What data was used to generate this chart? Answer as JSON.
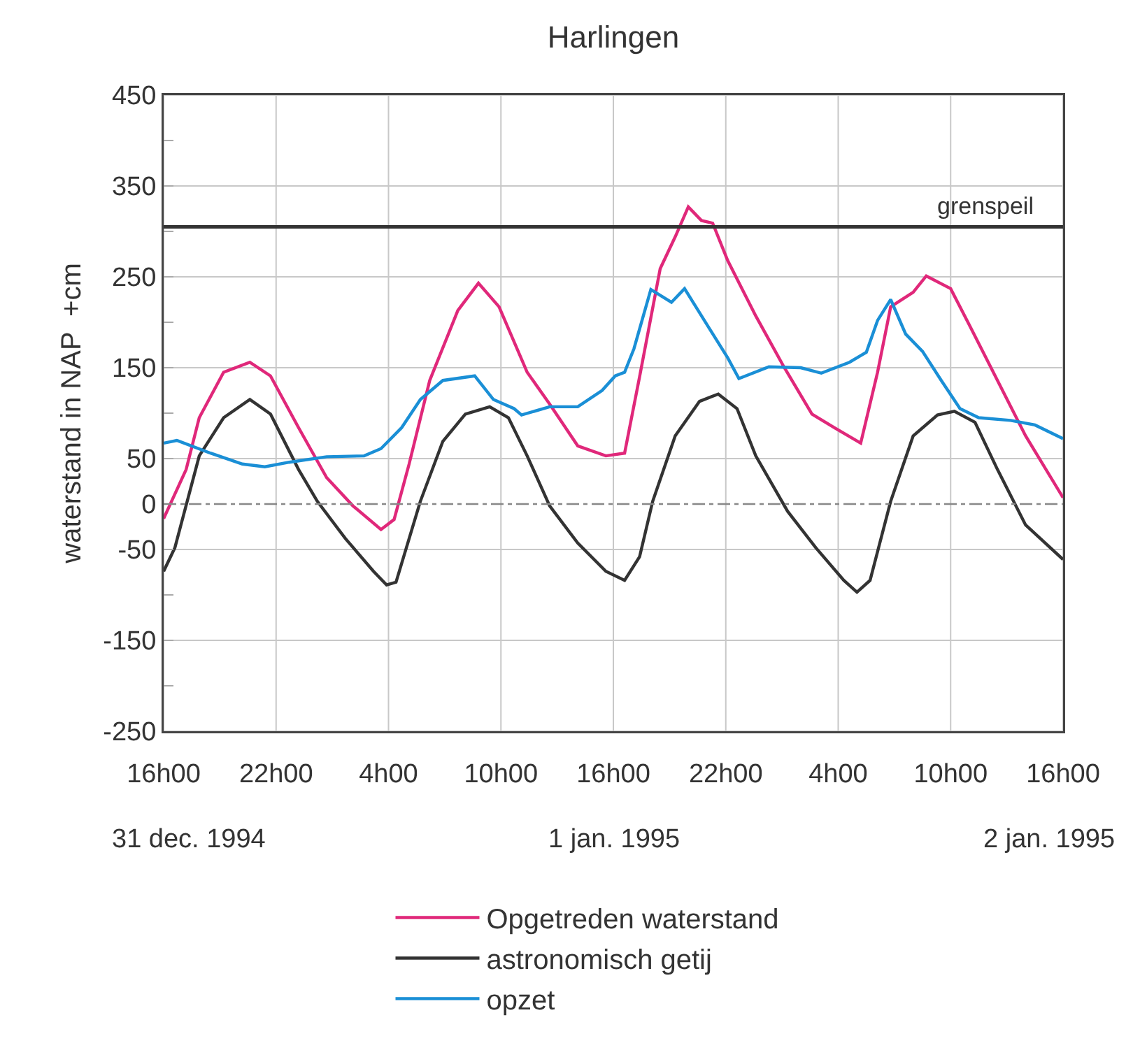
{
  "chart_data": {
    "type": "line",
    "title": "Harlingen",
    "ylabel": "waterstand in NAP  +cm",
    "xlim": [
      "1994-12-31T16:00",
      "1995-01-02T16:00"
    ],
    "xticks": [
      {
        "value": "1994-12-31T16:00",
        "label": "16h00"
      },
      {
        "value": "1994-12-31T22:00",
        "label": "22h00"
      },
      {
        "value": "1995-01-01T04:00",
        "label": "4h00"
      },
      {
        "value": "1995-01-01T10:00",
        "label": "10h00"
      },
      {
        "value": "1995-01-01T16:00",
        "label": "16h00"
      },
      {
        "value": "1995-01-01T22:00",
        "label": "22h00"
      },
      {
        "value": "1995-01-02T04:00",
        "label": "4h00"
      },
      {
        "value": "1995-01-02T10:00",
        "label": "10h00"
      },
      {
        "value": "1995-01-02T16:00",
        "label": "16h00"
      }
    ],
    "ylim": [
      -250,
      450
    ],
    "yticks": [
      450,
      {
        "value": 400,
        "label": null
      },
      350,
      {
        "value": 300,
        "label": null
      },
      250,
      {
        "value": 200,
        "label": null
      },
      150,
      {
        "value": 100,
        "label": null
      },
      50,
      0,
      -50,
      {
        "value": -100,
        "label": null
      },
      -150,
      {
        "value": -200,
        "label": null
      },
      -250
    ],
    "grid": true,
    "legend": "bottom",
    "line_style": "solid",
    "marker": "none",
    "annotations": [
      "31 dec. 1994",
      "1 jan. 1995",
      "2 jan. 1995"
    ],
    "ref_lines": [
      {
        "axis": "y",
        "value": 305,
        "label": "grenspeil",
        "color": "#333333",
        "line_style": "solid"
      },
      {
        "axis": "y",
        "value": 0,
        "color": "#888888",
        "line_style": "dashed"
      }
    ],
    "series": [
      {
        "name": "Opgetreden waterstand",
        "color": "#e0287a",
        "x": [
          "1994-12-31T16:00",
          "1994-12-31T17:12",
          "1994-12-31T17:54",
          "1994-12-31T19:12",
          "1994-12-31T20:36",
          "1994-12-31T21:42",
          "1994-12-31T23:12",
          "1995-01-01T00:42",
          "1995-01-01T02:06",
          "1995-01-01T03:36",
          "1995-01-01T04:18",
          "1995-01-01T05:06",
          "1995-01-01T06:12",
          "1995-01-01T07:42",
          "1995-01-01T08:48",
          "1995-01-01T09:54",
          "1995-01-01T11:24",
          "1995-01-01T12:36",
          "1995-01-01T14:06",
          "1995-01-01T15:36",
          "1995-01-01T16:36",
          "1995-01-01T17:24",
          "1995-01-01T18:30",
          "1995-01-01T19:18",
          "1995-01-01T20:00",
          "1995-01-01T20:42",
          "1995-01-01T21:18",
          "1995-01-01T22:06",
          "1995-01-01T23:36",
          "1995-01-02T01:06",
          "1995-01-02T02:36",
          "1995-01-02T03:48",
          "1995-01-02T05:12",
          "1995-01-02T06:06",
          "1995-01-02T06:48",
          "1995-01-02T08:00",
          "1995-01-02T08:42",
          "1995-01-02T10:00",
          "1995-01-02T11:00",
          "1995-01-02T12:30",
          "1995-01-02T14:00",
          "1995-01-02T16:00"
        ],
        "values": [
          -16,
          38,
          95,
          145,
          156,
          141,
          84,
          29,
          -2,
          -28,
          -17,
          44,
          136,
          213,
          243,
          217,
          145,
          110,
          64,
          53,
          56,
          140,
          259,
          294,
          327,
          312,
          309,
          268,
          207,
          151,
          99,
          84,
          67,
          145,
          217,
          233,
          251,
          237,
          197,
          136,
          75,
          7
        ]
      },
      {
        "name": "astronomisch getij",
        "color": "#333333",
        "x": [
          "1994-12-31T16:00",
          "1994-12-31T16:36",
          "1994-12-31T17:54",
          "1994-12-31T19:12",
          "1994-12-31T20:36",
          "1994-12-31T21:42",
          "1994-12-31T23:12",
          "1995-01-01T00:12",
          "1995-01-01T01:42",
          "1995-01-01T03:12",
          "1995-01-01T03:54",
          "1995-01-01T04:24",
          "1995-01-01T05:42",
          "1995-01-01T06:54",
          "1995-01-01T08:06",
          "1995-01-01T09:24",
          "1995-01-01T10:24",
          "1995-01-01T11:24",
          "1995-01-01T12:36",
          "1995-01-01T14:06",
          "1995-01-01T15:36",
          "1995-01-01T16:36",
          "1995-01-01T17:24",
          "1995-01-01T18:06",
          "1995-01-01T19:18",
          "1995-01-01T20:36",
          "1995-01-01T21:36",
          "1995-01-01T22:36",
          "1995-01-01T23:36",
          "1995-01-02T01:18",
          "1995-01-02T02:48",
          "1995-01-02T04:18",
          "1995-01-02T05:00",
          "1995-01-02T05:42",
          "1995-01-02T06:48",
          "1995-01-02T08:00",
          "1995-01-02T09:18",
          "1995-01-02T10:12",
          "1995-01-02T11:18",
          "1995-01-02T12:30",
          "1995-01-02T14:00",
          "1995-01-02T16:00"
        ],
        "values": [
          -74,
          -48,
          53,
          95,
          115,
          99,
          38,
          3,
          -38,
          -74,
          -89,
          -86,
          3,
          69,
          99,
          107,
          95,
          53,
          -2,
          -43,
          -74,
          -84,
          -58,
          3,
          75,
          113,
          121,
          105,
          53,
          -8,
          -48,
          -84,
          -97,
          -84,
          3,
          75,
          98,
          102,
          90,
          38,
          -23,
          -61
        ]
      },
      {
        "name": "opzet",
        "color": "#1a8fd6",
        "x": [
          "1994-12-31T16:00",
          "1994-12-31T16:42",
          "1994-12-31T18:30",
          "1994-12-31T20:12",
          "1994-12-31T21:24",
          "1994-12-31T22:42",
          "1995-01-01T00:42",
          "1995-01-01T02:42",
          "1995-01-01T03:36",
          "1995-01-01T04:42",
          "1995-01-01T05:42",
          "1995-01-01T06:54",
          "1995-01-01T08:36",
          "1995-01-01T09:36",
          "1995-01-01T10:42",
          "1995-01-01T11:06",
          "1995-01-01T12:36",
          "1995-01-01T14:06",
          "1995-01-01T15:24",
          "1995-01-01T16:06",
          "1995-01-01T16:36",
          "1995-01-01T17:06",
          "1995-01-01T18:00",
          "1995-01-01T19:06",
          "1995-01-01T19:48",
          "1995-01-01T21:06",
          "1995-01-01T22:06",
          "1995-01-01T22:42",
          "1995-01-02T00:18",
          "1995-01-02T02:00",
          "1995-01-02T03:06",
          "1995-01-02T04:36",
          "1995-01-02T05:30",
          "1995-01-02T06:06",
          "1995-01-02T06:48",
          "1995-01-02T07:36",
          "1995-01-02T08:30",
          "1995-01-02T09:30",
          "1995-01-02T10:30",
          "1995-01-02T11:30",
          "1995-01-02T13:12",
          "1995-01-02T14:30",
          "1995-01-02T16:00"
        ],
        "values": [
          67,
          70,
          56,
          44,
          41,
          46,
          52,
          53,
          61,
          84,
          115,
          136,
          141,
          115,
          105,
          98,
          107,
          107,
          125,
          141,
          145,
          171,
          236,
          222,
          237,
          194,
          161,
          138,
          151,
          150,
          144,
          156,
          167,
          202,
          225,
          187,
          168,
          136,
          105,
          95,
          92,
          87,
          72
        ]
      }
    ]
  }
}
